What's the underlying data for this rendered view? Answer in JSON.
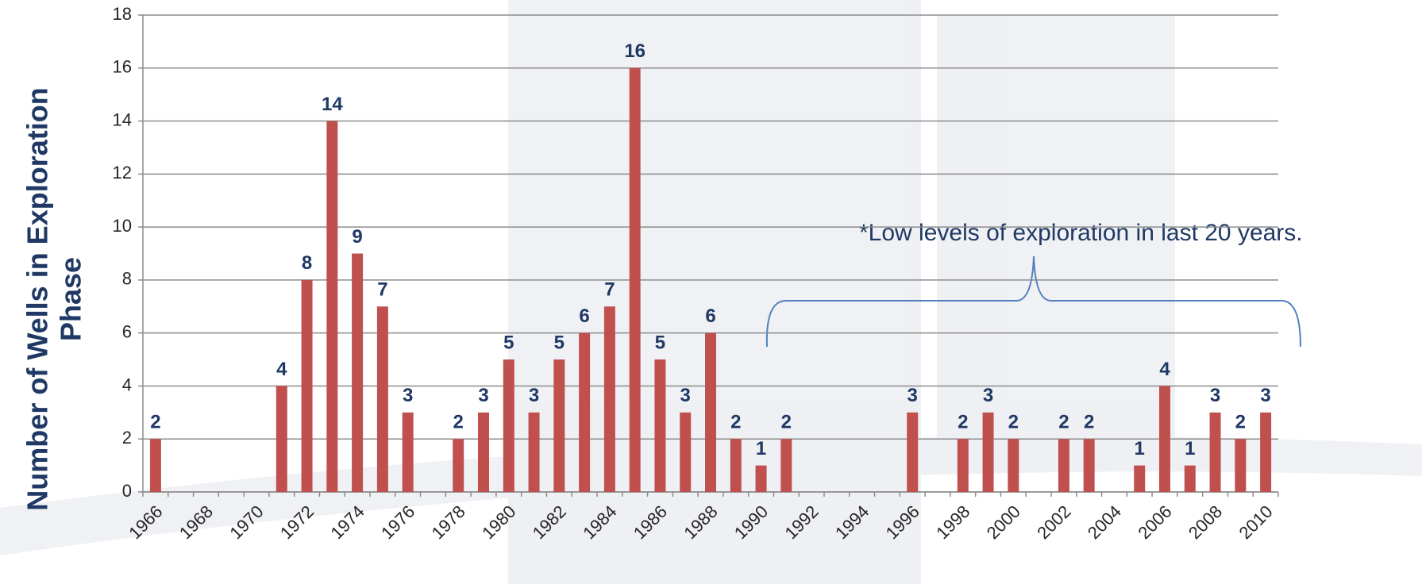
{
  "chart_data": {
    "type": "bar",
    "y_label": [
      "Number of Wells in Exploration",
      "Phase"
    ],
    "annotation": "*Low levels of exploration in last  20 years.",
    "categories": [
      "1966",
      null,
      "1968",
      null,
      "1970",
      null,
      "1972",
      null,
      "1974",
      null,
      "1976",
      null,
      "1978",
      null,
      "1980",
      null,
      "1982",
      null,
      "1984",
      null,
      "1986",
      null,
      "1988",
      null,
      "1990",
      null,
      "1992",
      null,
      "1994",
      null,
      "1996",
      null,
      "1998",
      null,
      "2000",
      null,
      "2002",
      null,
      "2004",
      null,
      "2006",
      null,
      "2008",
      null,
      "2010"
    ],
    "values": [
      2,
      0,
      0,
      0,
      0,
      4,
      8,
      14,
      9,
      7,
      3,
      0,
      2,
      3,
      5,
      3,
      5,
      6,
      7,
      16,
      5,
      3,
      6,
      2,
      1,
      2,
      0,
      0,
      0,
      0,
      3,
      0,
      2,
      3,
      2,
      0,
      2,
      2,
      0,
      1,
      4,
      1,
      3,
      2,
      3
    ],
    "color": "#c0504d",
    "ylim": [
      0,
      18
    ],
    "yticks": [
      0,
      2,
      4,
      6,
      8,
      10,
      12,
      14,
      16,
      18
    ],
    "grid": true
  }
}
